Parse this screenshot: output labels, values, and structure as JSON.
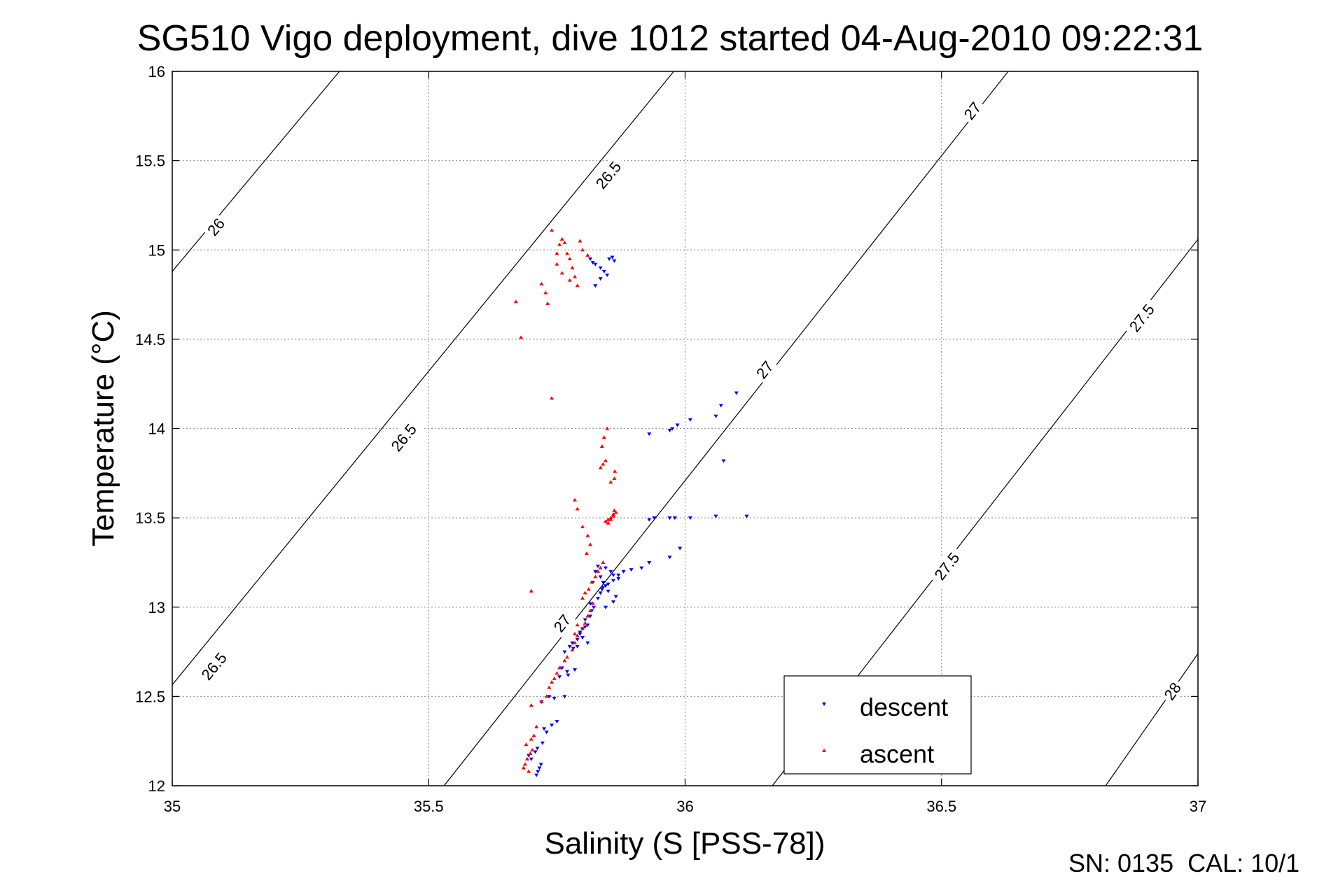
{
  "chart_data": {
    "type": "scatter",
    "title": "SG510 Vigo deployment, dive 1012 started 04-Aug-2010 09:22:31",
    "xlabel": "Salinity (S [PSS-78])",
    "ylabel": "Temperature (°C)",
    "xlim": [
      35,
      37
    ],
    "ylim": [
      12,
      16
    ],
    "xticks": [
      35,
      35.5,
      36,
      36.5,
      37
    ],
    "xtick_labels": [
      "35",
      "35.5",
      "36",
      "36.5",
      "37"
    ],
    "yticks": [
      12,
      12.5,
      13,
      13.5,
      14,
      14.5,
      15,
      15.5,
      16
    ],
    "ytick_labels": [
      "12",
      "12.5",
      "13",
      "13.5",
      "14",
      "14.5",
      "15",
      "15.5",
      "16"
    ],
    "grid": true,
    "legend_position": "bottom-right",
    "footer": "SN: 0135  CAL: 10/1",
    "contours": [
      {
        "level": 26,
        "x": [
          35.0,
          35.326
        ],
        "y": [
          14.88,
          16.0
        ],
        "labels": [
          {
            "text": "26",
            "x": 35.085,
            "y": 15.13
          }
        ]
      },
      {
        "level": 26.5,
        "x": [
          35.0,
          35.978
        ],
        "y": [
          12.565,
          16.0
        ],
        "labels": [
          {
            "text": "26.5",
            "x": 35.081,
            "y": 12.67
          },
          {
            "text": "26.5",
            "x": 35.451,
            "y": 13.95
          },
          {
            "text": "26.5",
            "x": 35.85,
            "y": 15.42
          }
        ]
      },
      {
        "level": 27,
        "x": [
          35.53,
          36.63
        ],
        "y": [
          12.0,
          16.0
        ],
        "labels": [
          {
            "text": "27",
            "x": 35.76,
            "y": 12.91
          },
          {
            "text": "27",
            "x": 36.155,
            "y": 14.33
          },
          {
            "text": "27",
            "x": 36.56,
            "y": 15.78
          }
        ]
      },
      {
        "level": 27.5,
        "x": [
          36.17,
          37.0
        ],
        "y": [
          12.0,
          15.06
        ],
        "labels": [
          {
            "text": "27.5",
            "x": 36.51,
            "y": 13.23
          },
          {
            "text": "27.5",
            "x": 36.89,
            "y": 14.62
          }
        ]
      },
      {
        "level": 28,
        "x": [
          36.82,
          37.0
        ],
        "y": [
          12.0,
          12.74
        ],
        "labels": [
          {
            "text": "28",
            "x": 36.95,
            "y": 12.53
          }
        ]
      }
    ],
    "series": [
      {
        "name": "descent",
        "color": "#0000ff",
        "marker": "triangle-down",
        "x": [
          35.71,
          35.713,
          35.716,
          35.719,
          35.7,
          35.695,
          35.708,
          35.712,
          35.722,
          35.73,
          35.725,
          35.74,
          35.75,
          35.745,
          35.735,
          35.72,
          35.765,
          35.772,
          35.785,
          35.77,
          35.755,
          35.76,
          35.765,
          35.775,
          35.78,
          35.79,
          35.782,
          35.795,
          35.8,
          35.81,
          35.805,
          35.815,
          35.818,
          35.822,
          35.815,
          35.83,
          35.835,
          35.838,
          35.845,
          35.84,
          35.85,
          35.86,
          35.87,
          35.88,
          35.895,
          35.915,
          35.93,
          35.97,
          35.99,
          35.98,
          35.93,
          35.94,
          35.97,
          36.01,
          36.06,
          36.12,
          35.79,
          35.81,
          35.8,
          35.795,
          35.805,
          35.845,
          35.86,
          35.865,
          35.85,
          35.84,
          35.82,
          35.835,
          35.825,
          35.83,
          35.845,
          35.855,
          35.86,
          35.87,
          35.93,
          35.97,
          35.975,
          35.985,
          36.01,
          36.06,
          36.07,
          36.075,
          36.1,
          35.815,
          35.82,
          35.825,
          35.835,
          35.842,
          35.848,
          35.852,
          35.858,
          35.862,
          35.835,
          35.825
        ],
        "y": [
          12.06,
          12.08,
          12.1,
          12.12,
          12.15,
          12.17,
          12.19,
          12.21,
          12.24,
          12.3,
          12.32,
          12.34,
          12.36,
          12.49,
          12.5,
          12.47,
          12.5,
          12.62,
          12.65,
          12.64,
          12.61,
          12.66,
          12.75,
          12.78,
          12.8,
          12.82,
          12.77,
          12.85,
          12.88,
          12.9,
          12.93,
          12.95,
          12.98,
          13.0,
          13.02,
          13.05,
          13.08,
          13.1,
          13.12,
          13.14,
          13.13,
          13.15,
          13.18,
          13.2,
          13.21,
          13.22,
          13.25,
          13.28,
          13.33,
          13.5,
          13.49,
          13.5,
          13.5,
          13.5,
          13.51,
          13.51,
          12.78,
          12.8,
          12.83,
          12.86,
          12.89,
          13.0,
          13.03,
          13.06,
          13.09,
          13.11,
          13.14,
          13.17,
          13.2,
          13.23,
          13.22,
          13.2,
          13.18,
          13.16,
          13.97,
          13.99,
          14.0,
          14.02,
          14.05,
          14.07,
          14.13,
          13.82,
          14.2,
          14.95,
          14.93,
          14.92,
          14.9,
          14.88,
          14.86,
          14.95,
          14.96,
          14.94,
          14.84,
          14.8
        ]
      },
      {
        "name": "ascent",
        "color": "#ff0000",
        "marker": "triangle-up",
        "x": [
          35.695,
          35.685,
          35.688,
          35.692,
          35.698,
          35.702,
          35.69,
          35.7,
          35.705,
          35.71,
          35.7,
          35.72,
          35.73,
          35.735,
          35.74,
          35.745,
          35.75,
          35.755,
          35.765,
          35.77,
          35.78,
          35.785,
          35.79,
          35.8,
          35.805,
          35.81,
          35.815,
          35.82,
          35.8,
          35.79,
          35.785,
          35.805,
          35.812,
          35.818,
          35.825,
          35.83,
          35.835,
          35.84,
          35.845,
          35.85,
          35.855,
          35.86,
          35.862,
          35.85,
          35.855,
          35.86,
          35.865,
          35.835,
          35.84,
          35.845,
          35.838,
          35.842,
          35.848,
          35.855,
          35.862,
          35.863,
          35.808,
          35.815,
          35.81,
          35.8,
          35.79,
          35.785,
          35.74,
          35.732,
          35.728,
          35.72,
          35.68,
          35.67,
          35.7,
          35.75,
          35.755,
          35.76,
          35.765,
          35.77,
          35.775,
          35.78,
          35.785,
          35.79,
          35.795,
          35.8,
          35.81,
          35.74,
          35.75,
          35.76,
          35.775
        ],
        "y": [
          12.08,
          12.1,
          12.12,
          12.15,
          12.18,
          12.2,
          12.23,
          12.26,
          12.28,
          12.33,
          12.45,
          12.47,
          12.5,
          12.55,
          12.58,
          12.6,
          12.63,
          12.66,
          12.7,
          12.72,
          12.76,
          12.8,
          12.84,
          12.88,
          12.91,
          12.95,
          12.98,
          13.02,
          13.05,
          12.9,
          12.85,
          13.08,
          13.1,
          13.14,
          13.17,
          13.2,
          13.22,
          13.25,
          13.48,
          13.49,
          13.5,
          13.52,
          13.54,
          13.47,
          13.49,
          13.51,
          13.53,
          13.78,
          13.8,
          13.82,
          13.9,
          13.95,
          14.0,
          13.7,
          13.72,
          13.76,
          13.3,
          13.35,
          13.4,
          13.45,
          13.55,
          13.6,
          14.17,
          14.7,
          14.76,
          14.81,
          14.51,
          14.71,
          13.09,
          14.98,
          15.03,
          15.06,
          15.04,
          14.98,
          14.95,
          14.9,
          14.85,
          14.8,
          15.05,
          15.0,
          14.97,
          15.11,
          14.92,
          14.87,
          14.83
        ]
      }
    ]
  },
  "colors": {
    "descent": "#0000ff",
    "ascent": "#ff0000",
    "contour": "#000000",
    "grid": "#9a9a9a"
  }
}
